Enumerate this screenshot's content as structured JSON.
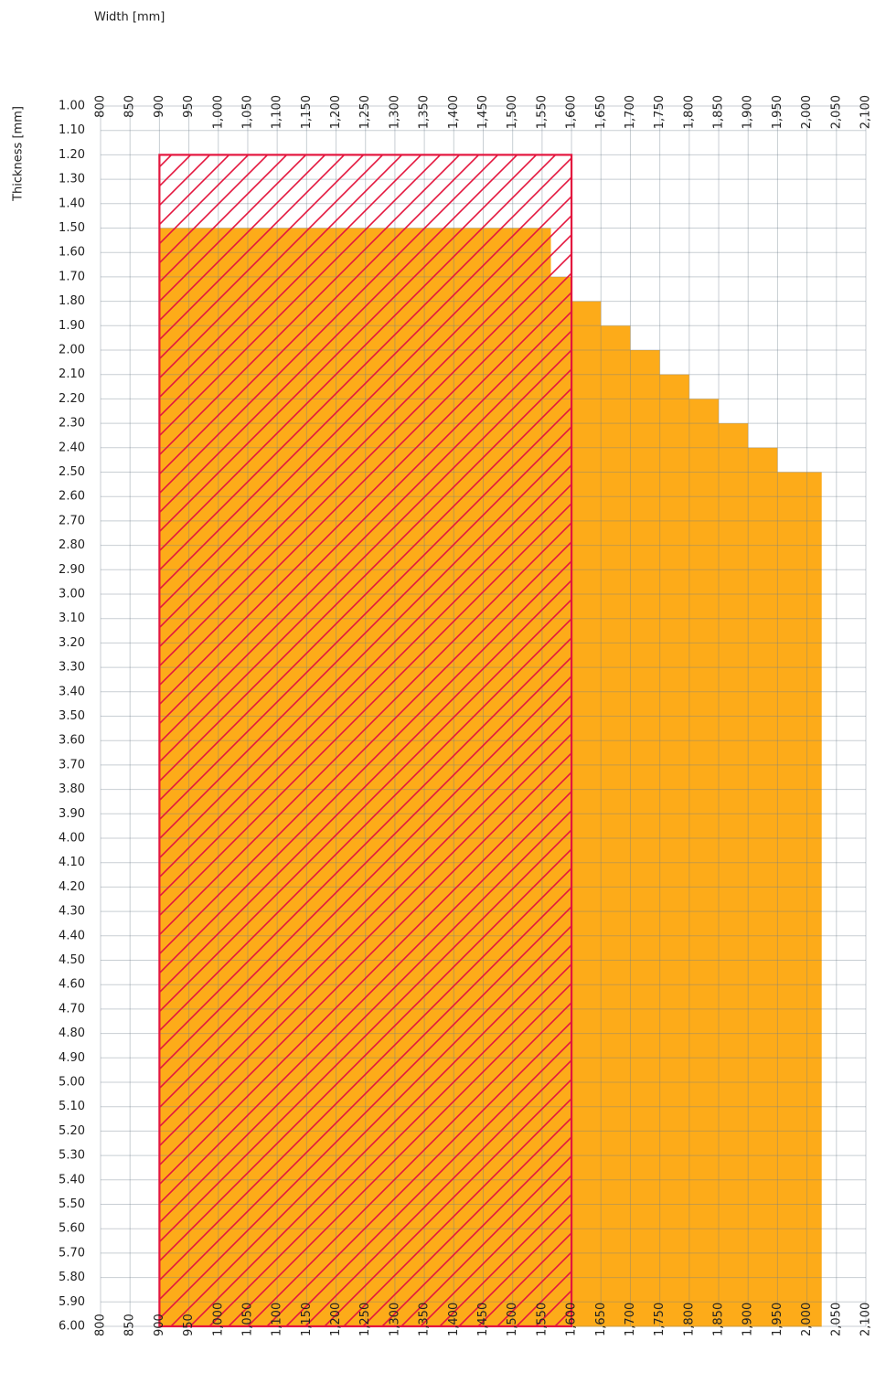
{
  "chart_data": {
    "type": "step-area",
    "x_label": "Width [mm]",
    "y_label": "Thickness [mm]",
    "xlim": [
      800,
      2100
    ],
    "xticks": [
      800,
      850,
      900,
      950,
      {
        "value": 1000,
        "label": "1,000"
      },
      {
        "value": 1050,
        "label": "1,050"
      },
      {
        "value": 1100,
        "label": "1,100"
      },
      {
        "value": 1150,
        "label": "1,150"
      },
      {
        "value": 1200,
        "label": "1,200"
      },
      {
        "value": 1250,
        "label": "1,250"
      },
      {
        "value": 1300,
        "label": "1,300"
      },
      {
        "value": 1350,
        "label": "1,350"
      },
      {
        "value": 1400,
        "label": "1,400"
      },
      {
        "value": 1450,
        "label": "1,450"
      },
      {
        "value": 1500,
        "label": "1,500"
      },
      {
        "value": 1550,
        "label": "1,550"
      },
      {
        "value": 1600,
        "label": "1,600"
      },
      {
        "value": 1650,
        "label": "1,650"
      },
      {
        "value": 1700,
        "label": "1,700"
      },
      {
        "value": 1750,
        "label": "1,750"
      },
      {
        "value": 1800,
        "label": "1,800"
      },
      {
        "value": 1850,
        "label": "1,850"
      },
      {
        "value": 1900,
        "label": "1,900"
      },
      {
        "value": 1950,
        "label": "1,950"
      },
      {
        "value": 2000,
        "label": "2,000"
      },
      {
        "value": 2050,
        "label": "2,050"
      },
      {
        "value": 2100,
        "label": "2,100"
      }
    ],
    "ylim": [
      1.0,
      6.0
    ],
    "y_inverted": true,
    "yticks": [
      {
        "value": 1.0,
        "label": "1.00"
      },
      {
        "value": 1.1,
        "label": "1.10"
      },
      {
        "value": 1.2,
        "label": "1.20"
      },
      {
        "value": 1.3,
        "label": "1.30"
      },
      {
        "value": 1.4,
        "label": "1.40"
      },
      {
        "value": 1.5,
        "label": "1.50"
      },
      {
        "value": 1.6,
        "label": "1.60"
      },
      {
        "value": 1.7,
        "label": "1.70"
      },
      {
        "value": 1.8,
        "label": "1.80"
      },
      {
        "value": 1.9,
        "label": "1.90"
      },
      {
        "value": 2.0,
        "label": "2.00"
      },
      {
        "value": 2.1,
        "label": "2.10"
      },
      {
        "value": 2.2,
        "label": "2.20"
      },
      {
        "value": 2.3,
        "label": "2.30"
      },
      {
        "value": 2.4,
        "label": "2.40"
      },
      {
        "value": 2.5,
        "label": "2.50"
      },
      {
        "value": 2.6,
        "label": "2.60"
      },
      {
        "value": 2.7,
        "label": "2.70"
      },
      {
        "value": 2.8,
        "label": "2.80"
      },
      {
        "value": 2.9,
        "label": "2.90"
      },
      {
        "value": 3.0,
        "label": "3.00"
      },
      {
        "value": 3.1,
        "label": "3.10"
      },
      {
        "value": 3.2,
        "label": "3.20"
      },
      {
        "value": 3.3,
        "label": "3.30"
      },
      {
        "value": 3.4,
        "label": "3.40"
      },
      {
        "value": 3.5,
        "label": "3.50"
      },
      {
        "value": 3.6,
        "label": "3.60"
      },
      {
        "value": 3.7,
        "label": "3.70"
      },
      {
        "value": 3.8,
        "label": "3.80"
      },
      {
        "value": 3.9,
        "label": "3.90"
      },
      {
        "value": 4.0,
        "label": "4.00"
      },
      {
        "value": 4.1,
        "label": "4.10"
      },
      {
        "value": 4.2,
        "label": "4.20"
      },
      {
        "value": 4.3,
        "label": "4.30"
      },
      {
        "value": 4.4,
        "label": "4.40"
      },
      {
        "value": 4.5,
        "label": "4.50"
      },
      {
        "value": 4.6,
        "label": "4.60"
      },
      {
        "value": 4.7,
        "label": "4.70"
      },
      {
        "value": 4.8,
        "label": "4.80"
      },
      {
        "value": 4.9,
        "label": "4.90"
      },
      {
        "value": 5.0,
        "label": "5.00"
      },
      {
        "value": 5.1,
        "label": "5.10"
      },
      {
        "value": 5.2,
        "label": "5.20"
      },
      {
        "value": 5.3,
        "label": "5.30"
      },
      {
        "value": 5.4,
        "label": "5.40"
      },
      {
        "value": 5.5,
        "label": "5.50"
      },
      {
        "value": 5.6,
        "label": "5.60"
      },
      {
        "value": 5.7,
        "label": "5.70"
      },
      {
        "value": 5.8,
        "label": "5.80"
      },
      {
        "value": 5.9,
        "label": "5.90"
      },
      {
        "value": 6.0,
        "label": "6.00"
      }
    ],
    "grid": true,
    "series": [
      {
        "color": "#fdab19",
        "x_start": 900,
        "y": [
          1.5,
          1.6,
          1.7,
          1.8,
          1.9,
          2.0,
          2.1,
          2.2,
          2.3,
          2.4,
          2.5
        ],
        "values": [
          1565,
          1565,
          1600,
          1650,
          1700,
          1750,
          1800,
          1850,
          1900,
          1950,
          2025
        ]
      },
      {
        "color": "#e3163e",
        "pattern": "hatch",
        "xrange": [
          900,
          1600
        ],
        "yrange": [
          1.2,
          6.0
        ]
      }
    ]
  }
}
